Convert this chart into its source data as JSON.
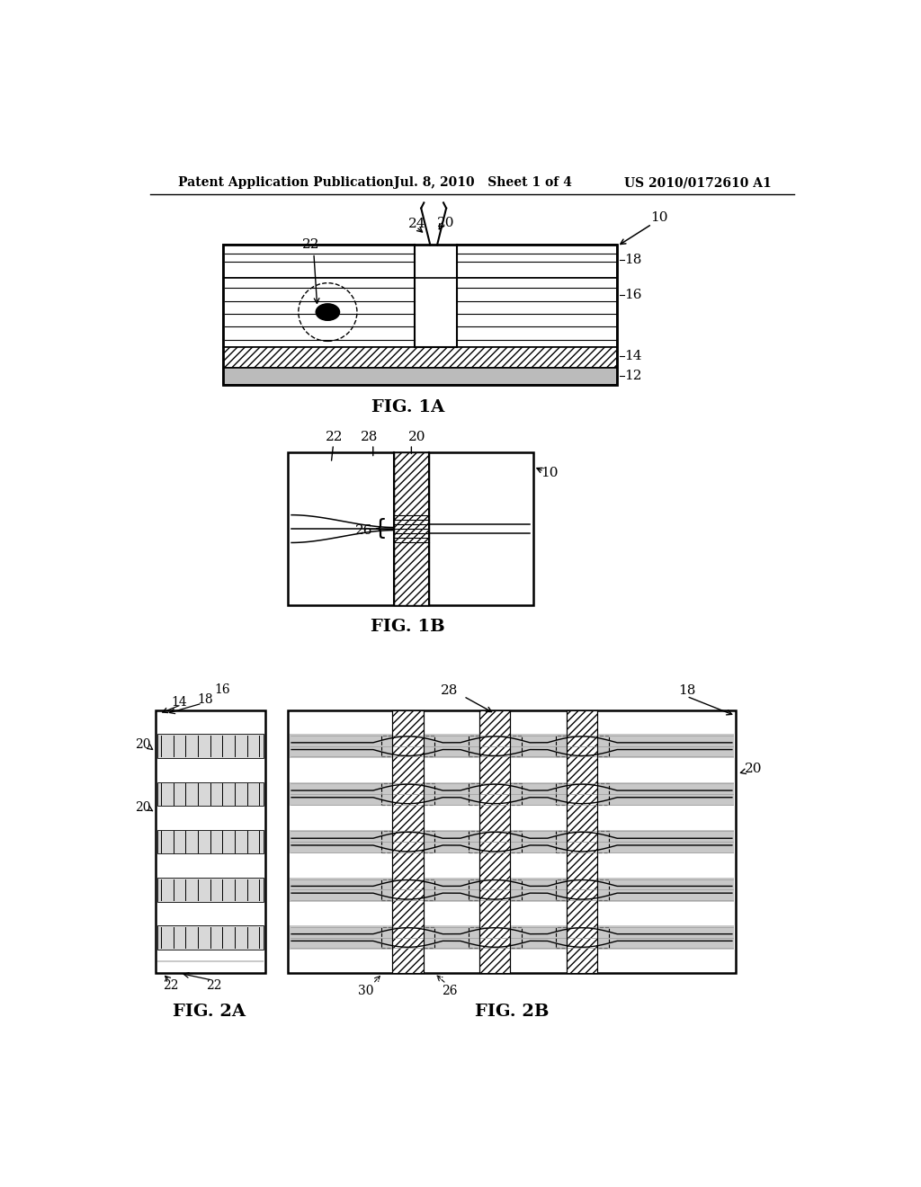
{
  "bg_color": "#ffffff",
  "header_left": "Patent Application Publication",
  "header_mid": "Jul. 8, 2010   Sheet 1 of 4",
  "header_right": "US 2010/0172610 A1",
  "fig1a_label": "FIG. 1A",
  "fig1b_label": "FIG. 1B",
  "fig2a_label": "FIG. 2A",
  "fig2b_label": "FIG. 2B"
}
